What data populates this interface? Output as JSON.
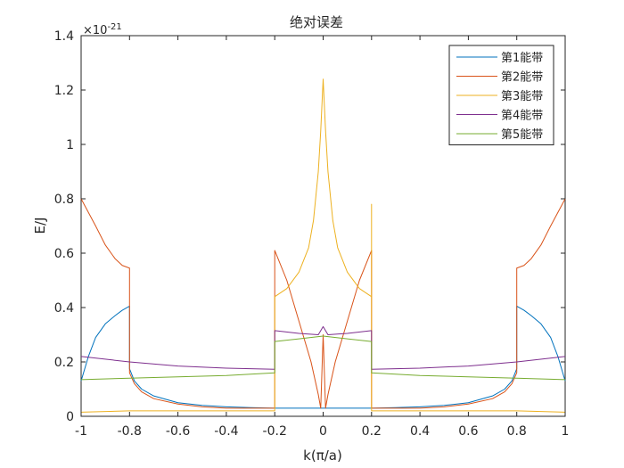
{
  "chart_data": {
    "type": "line",
    "title": "绝对误差",
    "xlabel": "k(π/a)",
    "ylabel": "E/J",
    "exponent_label": "×10",
    "exponent_power": "-21",
    "xlim": [
      -1,
      1
    ],
    "ylim": [
      0,
      1.4
    ],
    "xticks": [
      -1,
      -0.8,
      -0.6,
      -0.4,
      -0.2,
      0,
      0.2,
      0.4,
      0.6,
      0.8,
      1
    ],
    "xtick_labels": [
      "-1",
      "-0.8",
      "-0.6",
      "-0.4",
      "-0.2",
      "0",
      "0.2",
      "0.4",
      "0.6",
      "0.8",
      "1"
    ],
    "yticks": [
      0,
      0.2,
      0.4,
      0.6,
      0.8,
      1,
      1.2,
      1.4
    ],
    "ytick_labels": [
      "0",
      "0.2",
      "0.4",
      "0.6",
      "0.8",
      "1",
      "1.2",
      "1.4"
    ],
    "grid": false,
    "legend_position": "top-right",
    "series": [
      {
        "name": "第1能带",
        "color": "#0072BD",
        "points": [
          [
            -1,
            0.13
          ],
          [
            -0.97,
            0.22
          ],
          [
            -0.94,
            0.29
          ],
          [
            -0.9,
            0.34
          ],
          [
            -0.86,
            0.37
          ],
          [
            -0.83,
            0.39
          ],
          [
            -0.8,
            0.405
          ],
          [
            -0.8,
            0.175
          ],
          [
            -0.78,
            0.13
          ],
          [
            -0.75,
            0.1
          ],
          [
            -0.7,
            0.075
          ],
          [
            -0.6,
            0.05
          ],
          [
            -0.5,
            0.04
          ],
          [
            -0.4,
            0.035
          ],
          [
            -0.3,
            0.032
          ],
          [
            -0.2,
            0.03
          ],
          [
            -0.1,
            0.03
          ],
          [
            0,
            0.03
          ],
          [
            0.1,
            0.03
          ],
          [
            0.2,
            0.03
          ],
          [
            0.3,
            0.032
          ],
          [
            0.4,
            0.035
          ],
          [
            0.5,
            0.04
          ],
          [
            0.6,
            0.05
          ],
          [
            0.7,
            0.075
          ],
          [
            0.75,
            0.1
          ],
          [
            0.78,
            0.13
          ],
          [
            0.8,
            0.175
          ],
          [
            0.8,
            0.405
          ],
          [
            0.83,
            0.39
          ],
          [
            0.86,
            0.37
          ],
          [
            0.9,
            0.34
          ],
          [
            0.94,
            0.29
          ],
          [
            0.97,
            0.22
          ],
          [
            1,
            0.13
          ]
        ]
      },
      {
        "name": "第2能带",
        "color": "#D95319",
        "points": [
          [
            -1,
            0.8
          ],
          [
            -0.97,
            0.75
          ],
          [
            -0.94,
            0.7
          ],
          [
            -0.9,
            0.63
          ],
          [
            -0.86,
            0.58
          ],
          [
            -0.83,
            0.555
          ],
          [
            -0.8,
            0.545
          ],
          [
            -0.8,
            0.16
          ],
          [
            -0.78,
            0.12
          ],
          [
            -0.75,
            0.09
          ],
          [
            -0.7,
            0.065
          ],
          [
            -0.6,
            0.045
          ],
          [
            -0.5,
            0.035
          ],
          [
            -0.4,
            0.03
          ],
          [
            -0.3,
            0.03
          ],
          [
            -0.2,
            0.03
          ],
          [
            -0.2,
            0.61
          ],
          [
            -0.15,
            0.5
          ],
          [
            -0.1,
            0.35
          ],
          [
            -0.05,
            0.2
          ],
          [
            -0.02,
            0.08
          ],
          [
            -0.01,
            0.03
          ],
          [
            0,
            0.3
          ],
          [
            0.01,
            0.03
          ],
          [
            0.02,
            0.08
          ],
          [
            0.05,
            0.2
          ],
          [
            0.1,
            0.35
          ],
          [
            0.15,
            0.5
          ],
          [
            0.2,
            0.61
          ],
          [
            0.2,
            0.03
          ],
          [
            0.3,
            0.03
          ],
          [
            0.4,
            0.03
          ],
          [
            0.5,
            0.035
          ],
          [
            0.6,
            0.045
          ],
          [
            0.7,
            0.065
          ],
          [
            0.75,
            0.09
          ],
          [
            0.78,
            0.12
          ],
          [
            0.8,
            0.16
          ],
          [
            0.8,
            0.545
          ],
          [
            0.83,
            0.555
          ],
          [
            0.86,
            0.58
          ],
          [
            0.9,
            0.63
          ],
          [
            0.94,
            0.7
          ],
          [
            0.97,
            0.75
          ],
          [
            1,
            0.8
          ]
        ]
      },
      {
        "name": "第3能带",
        "color": "#EDB120",
        "points": [
          [
            -1,
            0.015
          ],
          [
            -0.8,
            0.02
          ],
          [
            -0.6,
            0.02
          ],
          [
            -0.4,
            0.02
          ],
          [
            -0.2,
            0.02
          ],
          [
            -0.2,
            0.44
          ],
          [
            -0.15,
            0.47
          ],
          [
            -0.1,
            0.53
          ],
          [
            -0.06,
            0.62
          ],
          [
            -0.04,
            0.72
          ],
          [
            -0.02,
            0.9
          ],
          [
            -0.01,
            1.05
          ],
          [
            0,
            1.24
          ],
          [
            0.01,
            1.05
          ],
          [
            0.02,
            0.9
          ],
          [
            0.04,
            0.72
          ],
          [
            0.06,
            0.62
          ],
          [
            0.1,
            0.53
          ],
          [
            0.15,
            0.47
          ],
          [
            0.2,
            0.44
          ],
          [
            0.2,
            0.78
          ],
          [
            0.2,
            0.02
          ],
          [
            0.4,
            0.02
          ],
          [
            0.6,
            0.02
          ],
          [
            0.8,
            0.02
          ],
          [
            1,
            0.015
          ]
        ]
      },
      {
        "name": "第4能带",
        "color": "#7E2F8E",
        "points": [
          [
            -1,
            0.22
          ],
          [
            -0.8,
            0.2
          ],
          [
            -0.6,
            0.185
          ],
          [
            -0.4,
            0.177
          ],
          [
            -0.2,
            0.173
          ],
          [
            -0.2,
            0.315
          ],
          [
            -0.1,
            0.305
          ],
          [
            -0.02,
            0.3
          ],
          [
            0,
            0.33
          ],
          [
            0.02,
            0.3
          ],
          [
            0.1,
            0.305
          ],
          [
            0.2,
            0.315
          ],
          [
            0.2,
            0.173
          ],
          [
            0.4,
            0.177
          ],
          [
            0.6,
            0.185
          ],
          [
            0.8,
            0.2
          ],
          [
            1,
            0.22
          ]
        ]
      },
      {
        "name": "第5能带",
        "color": "#77AC30",
        "points": [
          [
            -1,
            0.135
          ],
          [
            -0.8,
            0.14
          ],
          [
            -0.6,
            0.145
          ],
          [
            -0.4,
            0.15
          ],
          [
            -0.2,
            0.16
          ],
          [
            -0.2,
            0.275
          ],
          [
            -0.1,
            0.285
          ],
          [
            0,
            0.295
          ],
          [
            0.1,
            0.285
          ],
          [
            0.2,
            0.275
          ],
          [
            0.2,
            0.16
          ],
          [
            0.4,
            0.15
          ],
          [
            0.6,
            0.145
          ],
          [
            0.8,
            0.14
          ],
          [
            1,
            0.135
          ]
        ]
      }
    ]
  }
}
